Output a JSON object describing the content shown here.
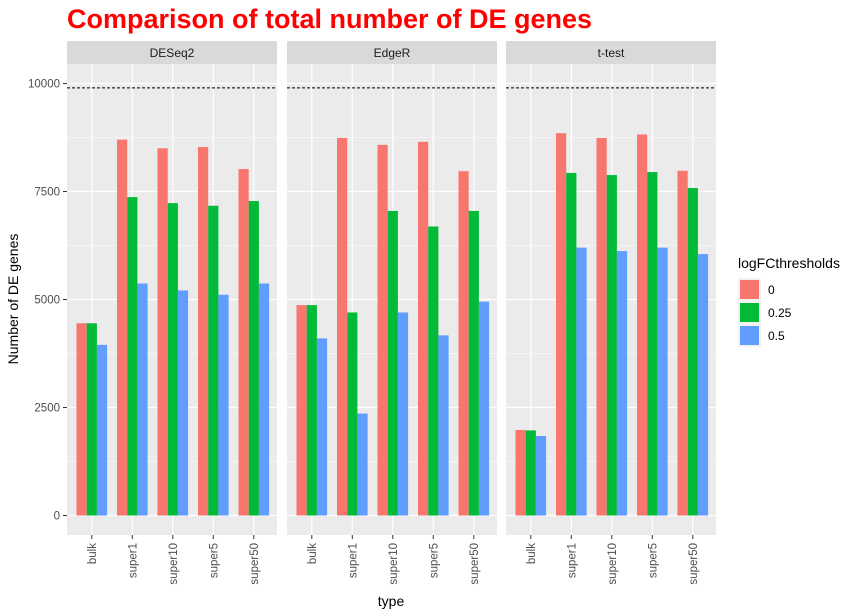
{
  "chart_data": {
    "type": "bar",
    "title": "Comparison of total number of DE genes",
    "xlabel": "type",
    "ylabel": "Number of DE genes",
    "ylim": [
      0,
      10000
    ],
    "yticks": [
      0,
      2500,
      5000,
      7500,
      10000
    ],
    "reference_line": {
      "y": 9900,
      "style": "dashed"
    },
    "categories": [
      "bulk",
      "super1",
      "super10",
      "super5",
      "super50"
    ],
    "legend": {
      "title": "logFCthresholds",
      "position": "right",
      "entries": [
        "0",
        "0.25",
        "0.5"
      ]
    },
    "colors": [
      "#F8766D",
      "#00BA38",
      "#619CFF"
    ],
    "grid": true,
    "panel_background": "#EBEBEB",
    "strip_background": "#D9D9D9",
    "facets": [
      {
        "name": "DESeq2",
        "series": [
          {
            "name": "0",
            "values": [
              4450,
              8700,
              8500,
              8530,
              8020
            ]
          },
          {
            "name": "0.25",
            "values": [
              4450,
              7370,
              7230,
              7170,
              7280
            ]
          },
          {
            "name": "0.5",
            "values": [
              3950,
              5370,
              5210,
              5110,
              5370
            ]
          }
        ]
      },
      {
        "name": "EdgeR",
        "series": [
          {
            "name": "0",
            "values": [
              4870,
              8740,
              8580,
              8650,
              7970
            ]
          },
          {
            "name": "0.25",
            "values": [
              4870,
              4700,
              7050,
              6690,
              7050
            ]
          },
          {
            "name": "0.5",
            "values": [
              4100,
              2360,
              4700,
              4170,
              4950
            ]
          }
        ]
      },
      {
        "name": "t-test",
        "series": [
          {
            "name": "0",
            "values": [
              1980,
              8850,
              8740,
              8820,
              7980
            ]
          },
          {
            "name": "0.25",
            "values": [
              1970,
              7930,
              7880,
              7950,
              7580
            ]
          },
          {
            "name": "0.5",
            "values": [
              1840,
              6200,
              6120,
              6200,
              6050
            ]
          }
        ]
      }
    ]
  }
}
